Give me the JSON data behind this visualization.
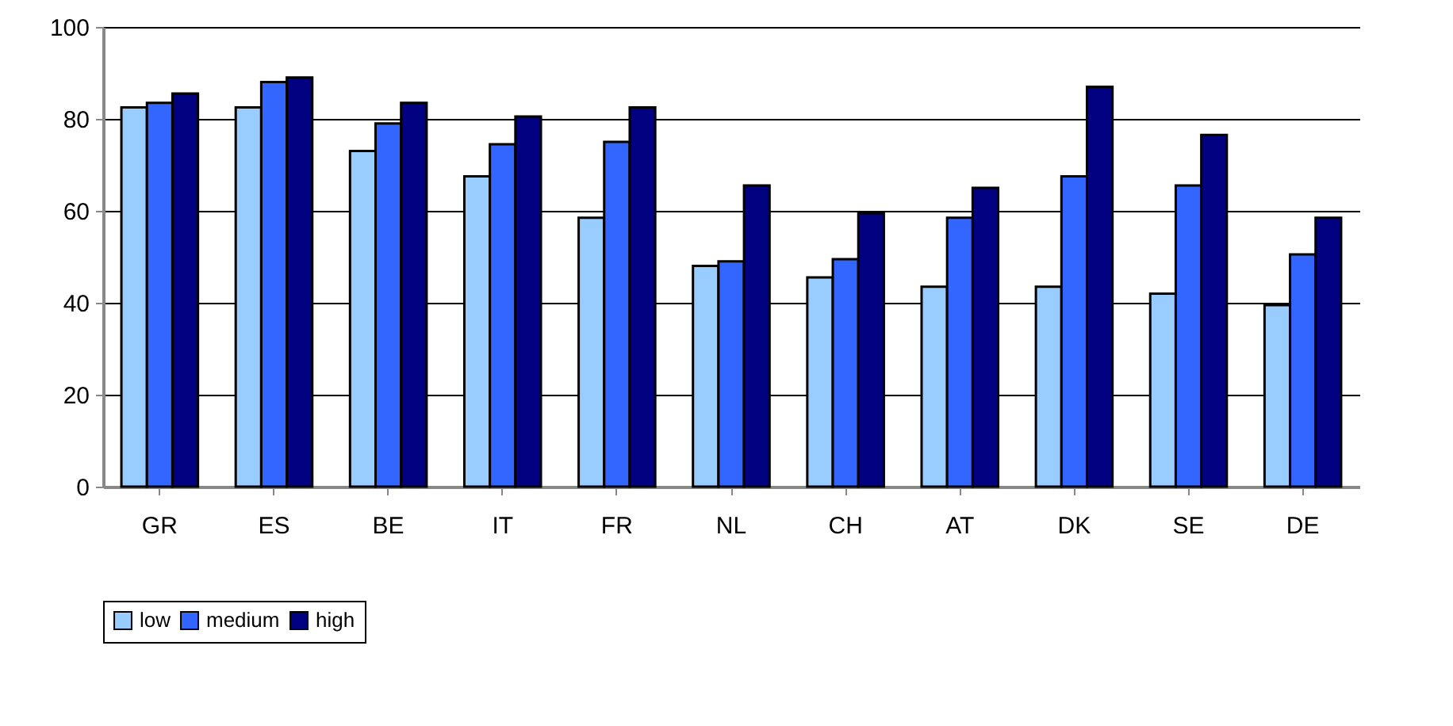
{
  "chart_data": {
    "type": "bar",
    "categories": [
      "GR",
      "ES",
      "BE",
      "IT",
      "FR",
      "NL",
      "CH",
      "AT",
      "DK",
      "SE",
      "DE"
    ],
    "series": [
      {
        "name": "low",
        "color": "#99ccff",
        "values": [
          82.5,
          82.5,
          73,
          67.5,
          58.5,
          48,
          45.5,
          43.5,
          43.5,
          42,
          39.5
        ]
      },
      {
        "name": "medium",
        "color": "#3366ff",
        "values": [
          83.5,
          88,
          79,
          74.5,
          75,
          49,
          49.5,
          58.5,
          67.5,
          65.5,
          50.5
        ]
      },
      {
        "name": "high",
        "color": "#000080",
        "values": [
          85.5,
          89,
          83.5,
          80.5,
          82.5,
          65.5,
          59.5,
          65,
          87,
          76.5,
          58.5
        ]
      }
    ],
    "ylim": [
      0,
      100
    ],
    "yticks": [
      0,
      20,
      40,
      60,
      80,
      100
    ],
    "grid": "y",
    "legend": "bottom"
  }
}
